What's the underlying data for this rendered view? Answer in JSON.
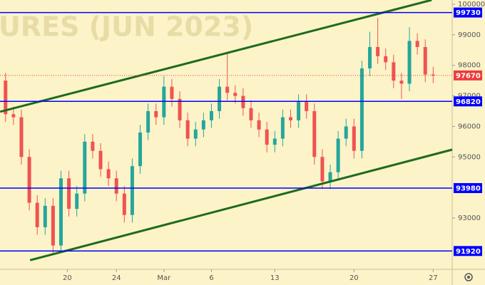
{
  "chart_data": {
    "type": "candlestick",
    "watermark": "URES (JUN 2023)",
    "xlim": [
      -2.35,
      26.2
    ],
    "ylim": [
      91320,
      100140
    ],
    "xticks": [
      {
        "value": 1.9,
        "label": "20"
      },
      {
        "value": 5,
        "label": "24"
      },
      {
        "value": 8,
        "label": "Mar"
      },
      {
        "value": 11,
        "label": "6"
      },
      {
        "value": 15,
        "label": "13"
      },
      {
        "value": 20,
        "label": "20"
      },
      {
        "value": 25,
        "label": "27"
      }
    ],
    "yticks": [
      100000,
      99000,
      98000,
      97000,
      96000,
      95000,
      93000
    ],
    "up_color": "#26a69a",
    "down_color": "#ef5350",
    "x": [
      -2,
      -1.5,
      -1,
      -0.5,
      0,
      0.5,
      1,
      1.5,
      2,
      2.5,
      3,
      3.5,
      4,
      4.5,
      5,
      5.5,
      6,
      6.5,
      7,
      7.5,
      8,
      8.5,
      9,
      9.5,
      10,
      10.5,
      11,
      11.5,
      12,
      12.5,
      13,
      13.5,
      14,
      14.5,
      15,
      15.5,
      16,
      16.5,
      17,
      17.5,
      18,
      18.5,
      19,
      19.5,
      20,
      20.5,
      21,
      21.5,
      22,
      22.5,
      23,
      23.5,
      24,
      24.5,
      25
    ],
    "open": [
      97500,
      96400,
      96300,
      95000,
      93500,
      92700,
      93400,
      92100,
      94300,
      93300,
      93800,
      95500,
      95200,
      94600,
      94300,
      93800,
      93100,
      94700,
      95800,
      96500,
      96300,
      97300,
      96900,
      96200,
      95600,
      95900,
      96200,
      96500,
      97300,
      97100,
      97000,
      96600,
      96200,
      95900,
      95400,
      95600,
      96300,
      96200,
      96800,
      96500,
      95000,
      94200,
      94500,
      95600,
      96000,
      95200,
      97900,
      98600,
      98300,
      98100,
      97500,
      97400,
      98800,
      98600,
      97700
    ],
    "high": [
      97750,
      96650,
      96550,
      95250,
      93750,
      93650,
      93650,
      94550,
      94550,
      94050,
      95750,
      95750,
      95450,
      94850,
      94550,
      94050,
      94950,
      96050,
      96750,
      96750,
      97650,
      97550,
      97150,
      96450,
      96150,
      96450,
      96750,
      97550,
      98400,
      97350,
      97250,
      96850,
      96450,
      96150,
      95850,
      96550,
      96550,
      97050,
      97050,
      96750,
      95250,
      94750,
      95850,
      96250,
      96250,
      98150,
      99100,
      99550,
      98550,
      98350,
      97750,
      99250,
      99050,
      98850,
      97950
    ],
    "low": [
      96150,
      96050,
      94750,
      93250,
      92450,
      92450,
      91850,
      91850,
      93050,
      93050,
      93550,
      94950,
      94350,
      94050,
      93550,
      92850,
      92850,
      94450,
      95550,
      96050,
      96050,
      96650,
      95950,
      95350,
      95350,
      95650,
      95950,
      96250,
      96850,
      96750,
      96350,
      95950,
      95650,
      95150,
      95150,
      95350,
      95950,
      95950,
      96250,
      94750,
      93950,
      93950,
      94250,
      95350,
      94950,
      94950,
      97650,
      98050,
      97850,
      97250,
      96900,
      97150,
      98350,
      97450,
      97420
    ],
    "close": [
      96400,
      96300,
      95000,
      93500,
      92700,
      93400,
      92100,
      94300,
      93300,
      93800,
      95500,
      95200,
      94600,
      94300,
      93800,
      93100,
      94700,
      95800,
      96500,
      96300,
      97300,
      96900,
      96200,
      95600,
      95900,
      96200,
      96500,
      97300,
      97100,
      97000,
      96600,
      96200,
      95900,
      95400,
      95600,
      96300,
      96200,
      96800,
      96500,
      95000,
      94200,
      94500,
      95600,
      96000,
      95200,
      97900,
      98600,
      98300,
      98100,
      97500,
      97400,
      98800,
      98600,
      97700,
      97670
    ],
    "trendlines": [
      {
        "x": [
          -2.34,
          24.9
        ],
        "y": [
          96480,
          100140
        ],
        "color": "#1e6b1e"
      },
      {
        "x": [
          -0.45,
          26.2
        ],
        "y": [
          91620,
          95240
        ],
        "color": "#1e6b1e"
      }
    ],
    "levels": [
      {
        "value": 99730,
        "color": "#0000ff"
      },
      {
        "value": 96820,
        "color": "#0000ff"
      },
      {
        "value": 93980,
        "color": "#0000ff"
      },
      {
        "value": 91920,
        "color": "#0000ff"
      }
    ],
    "last_price": {
      "value": 97670,
      "color": "#ef3b3b"
    }
  }
}
